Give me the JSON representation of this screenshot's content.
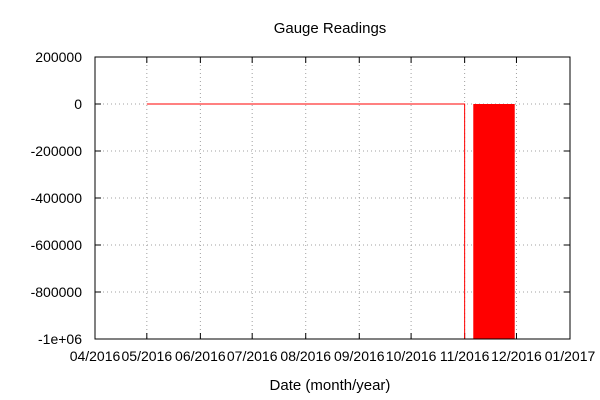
{
  "chart_data": {
    "type": "line",
    "title": "Gauge Readings",
    "xlabel": "Date (month/year)",
    "ylabel": "",
    "x_ticks": [
      "04/2016",
      "05/2016",
      "06/2016",
      "07/2016",
      "08/2016",
      "09/2016",
      "10/2016",
      "11/2016",
      "12/2016",
      "01/2017"
    ],
    "y_ticks": [
      "200000",
      "0",
      "-200000",
      "-400000",
      "-600000",
      "-800000",
      "-1e+06"
    ],
    "ylim": [
      -1000000,
      200000
    ],
    "xlim": [
      "2016-04-01",
      "2017-01-01"
    ],
    "grid": true,
    "legend": "none",
    "series_color": "#ff0000",
    "series": [
      {
        "type": "line",
        "points": [
          {
            "x": "2016-05-01",
            "y": 0
          },
          {
            "x": "2016-11-01",
            "y": 0
          },
          {
            "x": "2016-11-01",
            "y": -1000000
          }
        ]
      },
      {
        "type": "bar",
        "x_start": "2016-11-06",
        "x_end": "2016-11-30",
        "y": -1000000
      }
    ]
  }
}
